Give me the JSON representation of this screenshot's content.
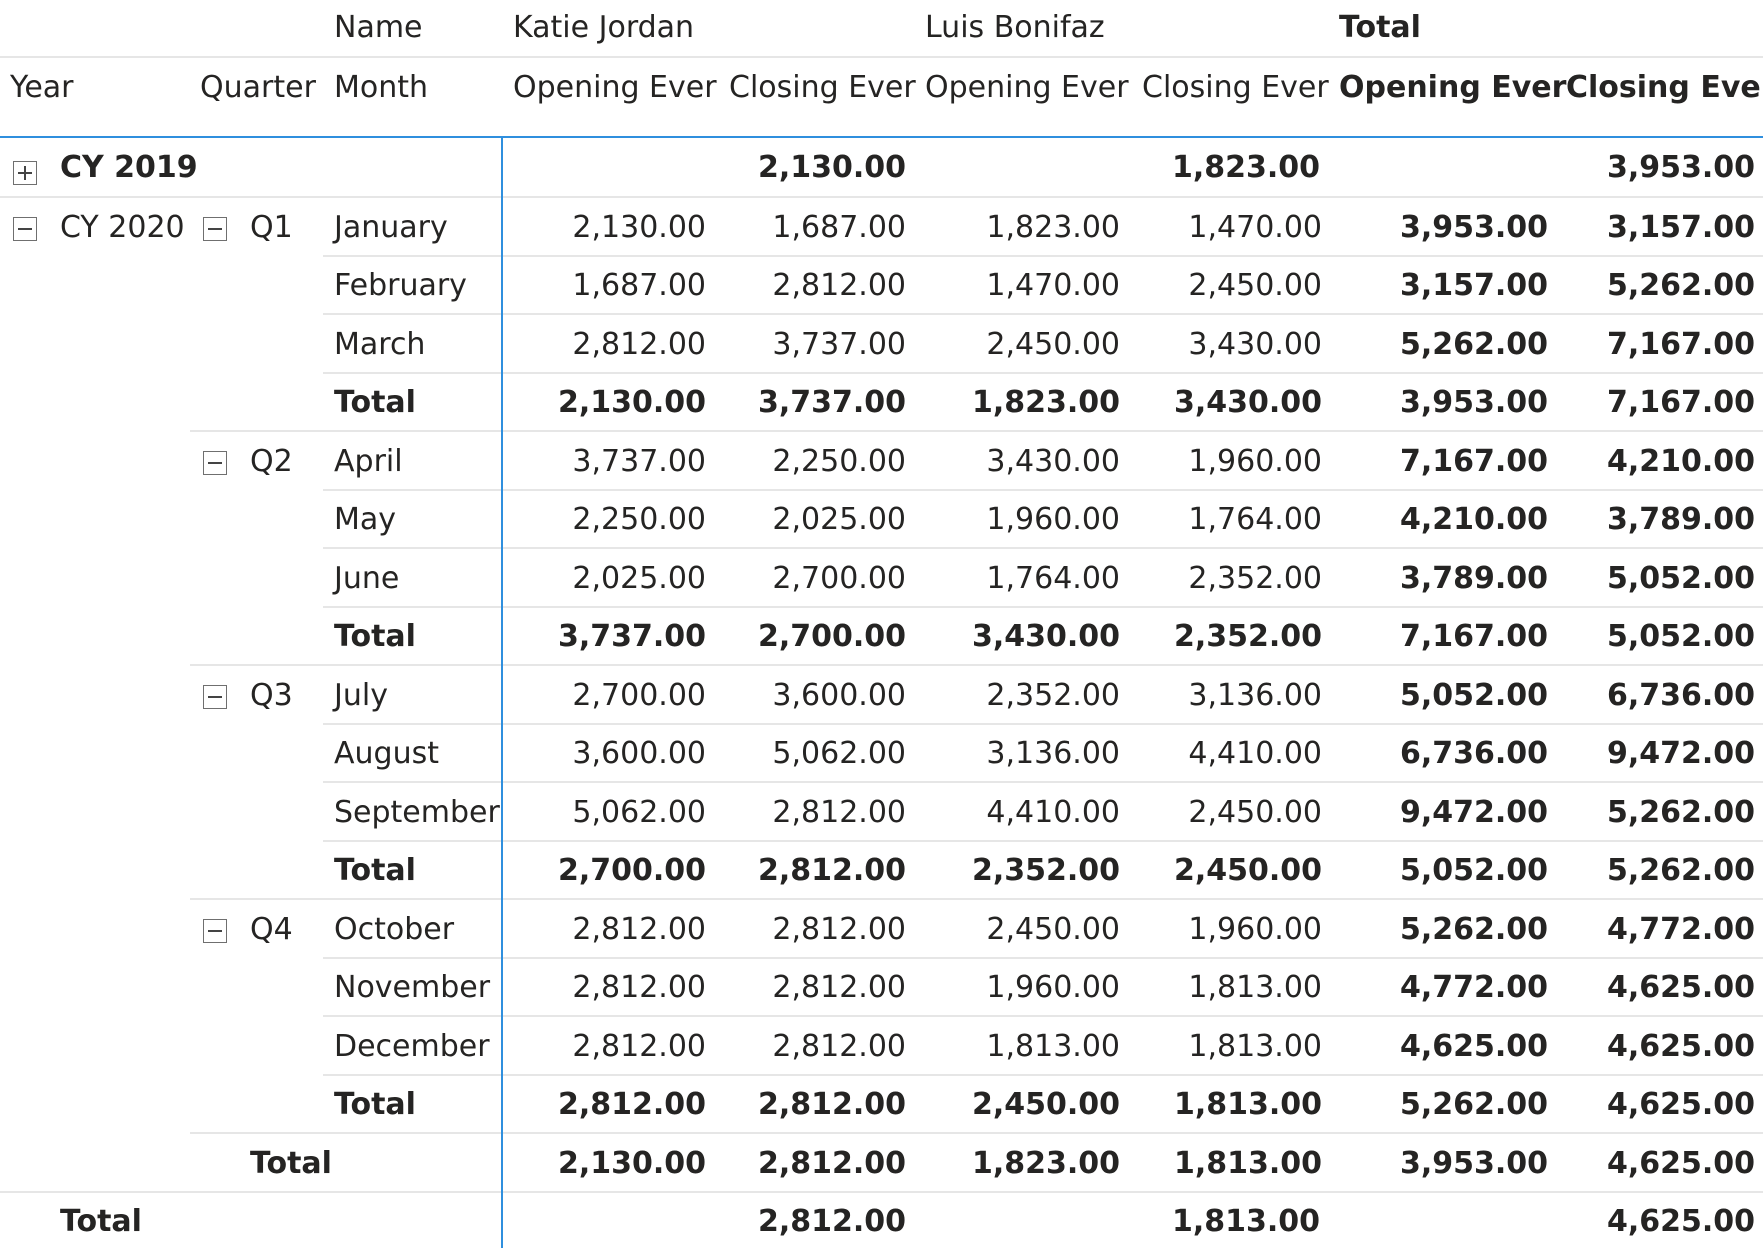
{
  "header": {
    "name_label": "Name",
    "person1": "Katie Jordan",
    "person2": "Luis Bonifaz",
    "total": "Total",
    "year": "Year",
    "quarter": "Quarter",
    "month": "Month",
    "opening": "Opening Ever",
    "closing": "Closing Ever"
  },
  "rows": {
    "cy2019": {
      "label": "CY 2019",
      "k_close": "2,130.00",
      "l_close": "1,823.00",
      "t_close": "3,953.00"
    },
    "cy2020": {
      "label": "CY 2020"
    },
    "q1": "Q1",
    "q2": "Q2",
    "q3": "Q3",
    "q4": "Q4",
    "jan": {
      "label": "January",
      "v": [
        "2,130.00",
        "1,687.00",
        "1,823.00",
        "1,470.00",
        "3,953.00",
        "3,157.00"
      ]
    },
    "feb": {
      "label": "February",
      "v": [
        "1,687.00",
        "2,812.00",
        "1,470.00",
        "2,450.00",
        "3,157.00",
        "5,262.00"
      ]
    },
    "mar": {
      "label": "March",
      "v": [
        "2,812.00",
        "3,737.00",
        "2,450.00",
        "3,430.00",
        "5,262.00",
        "7,167.00"
      ]
    },
    "q1t": {
      "label": "Total",
      "v": [
        "2,130.00",
        "3,737.00",
        "1,823.00",
        "3,430.00",
        "3,953.00",
        "7,167.00"
      ]
    },
    "apr": {
      "label": "April",
      "v": [
        "3,737.00",
        "2,250.00",
        "3,430.00",
        "1,960.00",
        "7,167.00",
        "4,210.00"
      ]
    },
    "may": {
      "label": "May",
      "v": [
        "2,250.00",
        "2,025.00",
        "1,960.00",
        "1,764.00",
        "4,210.00",
        "3,789.00"
      ]
    },
    "jun": {
      "label": "June",
      "v": [
        "2,025.00",
        "2,700.00",
        "1,764.00",
        "2,352.00",
        "3,789.00",
        "5,052.00"
      ]
    },
    "q2t": {
      "label": "Total",
      "v": [
        "3,737.00",
        "2,700.00",
        "3,430.00",
        "2,352.00",
        "7,167.00",
        "5,052.00"
      ]
    },
    "jul": {
      "label": "July",
      "v": [
        "2,700.00",
        "3,600.00",
        "2,352.00",
        "3,136.00",
        "5,052.00",
        "6,736.00"
      ]
    },
    "aug": {
      "label": "August",
      "v": [
        "3,600.00",
        "5,062.00",
        "3,136.00",
        "4,410.00",
        "6,736.00",
        "9,472.00"
      ]
    },
    "sep": {
      "label": "September",
      "v": [
        "5,062.00",
        "2,812.00",
        "4,410.00",
        "2,450.00",
        "9,472.00",
        "5,262.00"
      ]
    },
    "q3t": {
      "label": "Total",
      "v": [
        "2,700.00",
        "2,812.00",
        "2,352.00",
        "2,450.00",
        "5,052.00",
        "5,262.00"
      ]
    },
    "oct": {
      "label": "October",
      "v": [
        "2,812.00",
        "2,812.00",
        "2,450.00",
        "1,960.00",
        "5,262.00",
        "4,772.00"
      ]
    },
    "nov": {
      "label": "November",
      "v": [
        "2,812.00",
        "2,812.00",
        "1,960.00",
        "1,813.00",
        "4,772.00",
        "4,625.00"
      ]
    },
    "dec": {
      "label": "December",
      "v": [
        "2,812.00",
        "2,812.00",
        "1,813.00",
        "1,813.00",
        "4,625.00",
        "4,625.00"
      ]
    },
    "q4t": {
      "label": "Total",
      "v": [
        "2,812.00",
        "2,812.00",
        "2,450.00",
        "1,813.00",
        "5,262.00",
        "4,625.00"
      ]
    },
    "y2020t": {
      "label": "Total",
      "v": [
        "2,130.00",
        "2,812.00",
        "1,823.00",
        "1,813.00",
        "3,953.00",
        "4,625.00"
      ]
    },
    "grand": {
      "label": "Total",
      "k_close": "2,812.00",
      "l_close": "1,813.00",
      "t_close": "4,625.00"
    }
  }
}
